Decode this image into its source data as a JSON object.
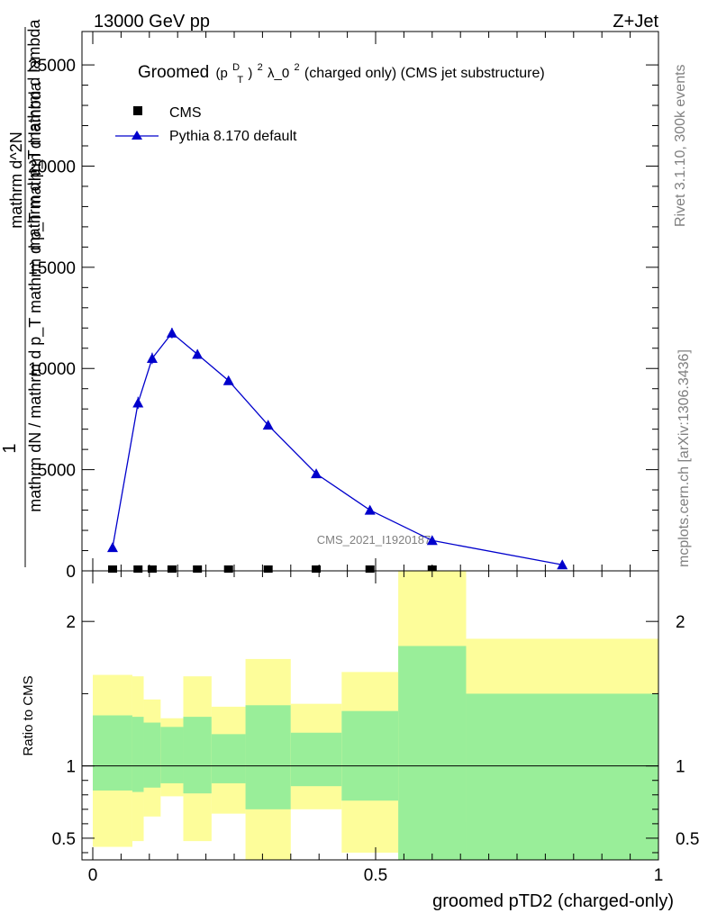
{
  "header": {
    "left": "13000 GeV pp",
    "right": "Z+Jet"
  },
  "side_labels": {
    "rivet": "Rivet 3.1.10,  300k events",
    "mcplots": "mcplots.cern.ch [arXiv:1306.3436]"
  },
  "watermark": "CMS_2021_I1920187",
  "colors": {
    "mc": "#0000cc",
    "data": "#000000",
    "band_inner": "#99ee99",
    "band_outer": "#fdfd9a"
  },
  "chart_data": [
    {
      "type": "line",
      "title_main": "Groomed",
      "title_sym": "(p",
      "title_sup1": "D",
      "title_sub": "T",
      "title_close": ")",
      "title_sup2": "2",
      "title_lambda": " λ_0",
      "title_sup3": "2",
      "title_rest": "  (charged only) (CMS jet substructure)",
      "ylabel_num": "1",
      "ylabel_den": "mathrm dN / mathrm d p_T mathrm d p_T mathrm d lambda",
      "ylabel_extra_top": "mathrm d^2N",
      "ylabel_extra_bottom": "mathrm d p_T mathrm d lambda",
      "xlim": [
        0,
        1
      ],
      "ylim": [
        0,
        26500
      ],
      "yticks": [
        0,
        5000,
        10000,
        15000,
        20000,
        25000
      ],
      "ytick_labels": [
        "0",
        "5000",
        "10000",
        "15000",
        "20000",
        "25000"
      ],
      "legend": {
        "placement": "top-left",
        "data_label": "CMS",
        "mc_label": "Pythia 8.170 default"
      },
      "series": [
        {
          "name": "Pythia 8.170 default",
          "x": [
            0.035,
            0.08,
            0.105,
            0.14,
            0.185,
            0.24,
            0.31,
            0.395,
            0.49,
            0.6,
            0.83
          ],
          "values": [
            1150,
            8300,
            10500,
            11750,
            10700,
            9400,
            7200,
            4800,
            3000,
            1500,
            300
          ],
          "errors": [
            80,
            300,
            280,
            260,
            230,
            200,
            150,
            100,
            80,
            50,
            20
          ]
        },
        {
          "name": "CMS",
          "x": [
            0.035,
            0.08,
            0.105,
            0.14,
            0.185,
            0.24,
            0.31,
            0.395,
            0.49,
            0.6
          ],
          "values": [
            0,
            0,
            0,
            0,
            0,
            0,
            0,
            0,
            0,
            0
          ]
        }
      ]
    },
    {
      "type": "area",
      "ylabel": "Ratio to CMS",
      "xlabel": "groomed pTD2 (charged-only)",
      "xlim": [
        0,
        1
      ],
      "ylim": [
        0.35,
        2.35
      ],
      "xticks": [
        0,
        0.5,
        1
      ],
      "xtick_labels": [
        "0",
        "0.5",
        "1"
      ],
      "yticks": [
        0.5,
        1,
        2
      ],
      "ytick_labels": [
        "0.5",
        "1",
        "2"
      ],
      "bins": [
        {
          "x0": 0.0,
          "x1": 0.07,
          "in_lo": 0.83,
          "in_hi": 1.35,
          "out_lo": 0.44,
          "out_hi": 1.63
        },
        {
          "x0": 0.07,
          "x1": 0.09,
          "in_lo": 0.82,
          "in_hi": 1.34,
          "out_lo": 0.48,
          "out_hi": 1.62
        },
        {
          "x0": 0.09,
          "x1": 0.12,
          "in_lo": 0.85,
          "in_hi": 1.3,
          "out_lo": 0.65,
          "out_hi": 1.46
        },
        {
          "x0": 0.12,
          "x1": 0.16,
          "in_lo": 0.88,
          "in_hi": 1.27,
          "out_lo": 0.79,
          "out_hi": 1.33
        },
        {
          "x0": 0.16,
          "x1": 0.21,
          "in_lo": 0.81,
          "in_hi": 1.34,
          "out_lo": 0.48,
          "out_hi": 1.62
        },
        {
          "x0": 0.21,
          "x1": 0.27,
          "in_lo": 0.88,
          "in_hi": 1.22,
          "out_lo": 0.67,
          "out_hi": 1.41
        },
        {
          "x0": 0.27,
          "x1": 0.35,
          "in_lo": 0.7,
          "in_hi": 1.42,
          "out_lo": 0.35,
          "out_hi": 1.74
        },
        {
          "x0": 0.35,
          "x1": 0.44,
          "in_lo": 0.86,
          "in_hi": 1.23,
          "out_lo": 0.7,
          "out_hi": 1.43
        },
        {
          "x0": 0.44,
          "x1": 0.54,
          "in_lo": 0.76,
          "in_hi": 1.38,
          "out_lo": 0.4,
          "out_hi": 1.65
        },
        {
          "x0": 0.54,
          "x1": 0.66,
          "in_lo": 0.35,
          "in_hi": 1.83,
          "out_lo": 0.35,
          "out_hi": 2.35
        },
        {
          "x0": 0.66,
          "x1": 1.0,
          "in_lo": 0.35,
          "in_hi": 1.5,
          "out_lo": 0.61,
          "out_hi": 1.88
        }
      ]
    }
  ]
}
